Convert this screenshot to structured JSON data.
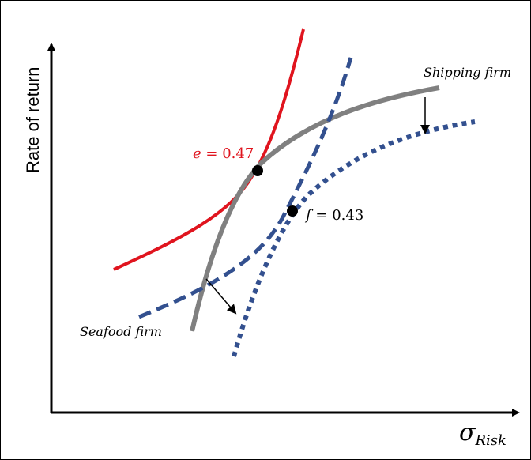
{
  "diagram": {
    "y_axis_label": "Rate of return",
    "x_axis_label_main": "σ",
    "x_axis_label_sub": "Risk",
    "curves": {
      "shipping_label": "Shipping firm",
      "seafood_label": "Seafood firm"
    },
    "points": {
      "e": {
        "symbol": "e",
        "equals": " = ",
        "value": "0.47"
      },
      "f": {
        "symbol": "f",
        "equals": " = ",
        "value": "0.43"
      }
    }
  },
  "colors": {
    "red_curve": "#e0141e",
    "gray_curve": "#808080",
    "blue_curve": "#33508f",
    "axis": "#000000",
    "point": "#000000"
  }
}
